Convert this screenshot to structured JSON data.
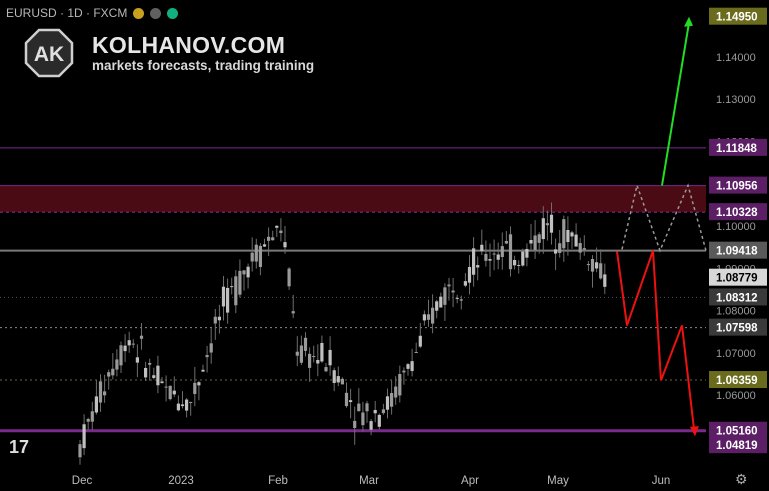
{
  "header": {
    "symbol": "EURUSD · 1D · FXCM",
    "dot_colors": [
      "#c8a020",
      "#606060",
      "#10b080"
    ]
  },
  "brand": {
    "logo_text": "AK",
    "title": "KOLHANOV.COM",
    "subtitle": "markets forecasts, trading training"
  },
  "chart_data": {
    "type": "candlestick",
    "symbol": "EURUSD",
    "timeframe": "1D",
    "ylim": [
      1.0435,
      1.1525
    ],
    "x_labels": [
      "Dec",
      "2023",
      "Feb",
      "Mar",
      "Apr",
      "May",
      "Jun"
    ],
    "price_scale_ticks": [
      "1.14000",
      "1.13000",
      "1.12000",
      "1.10000",
      "1.09000",
      "1.08000",
      "1.07000",
      "1.06000"
    ],
    "level_labels": [
      {
        "value": 1.1495,
        "text": "1.14950",
        "bg": "#6b6b1e",
        "fg": "#ffffff"
      },
      {
        "value": 1.11848,
        "text": "1.11848",
        "bg": "#5c1f66",
        "fg": "#ffffff"
      },
      {
        "value": 1.10956,
        "text": "1.10956",
        "bg": "#5c1f66",
        "fg": "#ffffff"
      },
      {
        "value": 1.10328,
        "text": "1.10328",
        "bg": "#5c1f66",
        "fg": "#ffffff"
      },
      {
        "value": 1.09418,
        "text": "1.09418",
        "bg": "#5a5a5a",
        "fg": "#ffffff"
      },
      {
        "value": 1.08779,
        "text": "1.08779",
        "bg": "#d8d8d8",
        "fg": "#000000"
      },
      {
        "value": 1.08312,
        "text": "1.08312",
        "bg": "#3a3a3a",
        "fg": "#ffffff"
      },
      {
        "value": 1.07598,
        "text": "1.07598",
        "bg": "#3a3a3a",
        "fg": "#ffffff"
      },
      {
        "value": 1.06359,
        "text": "1.06359",
        "bg": "#6b6b1e",
        "fg": "#ffffff"
      },
      {
        "value": 1.0516,
        "text": "1.05160",
        "bg": "#5c1f66",
        "fg": "#ffffff"
      },
      {
        "value": 1.04819,
        "text": "1.04819",
        "bg": "#5c1f66",
        "fg": "#ffffff"
      }
    ],
    "resistance_zone": [
      1.1033,
      1.1096
    ],
    "colors": {
      "candles": "#9a9a9a",
      "bullish_forecast": "#22dd22",
      "bearish_forecast": "#ee1111",
      "zone": "#4a0b14",
      "purple_level": "#7a2a8a"
    }
  }
}
